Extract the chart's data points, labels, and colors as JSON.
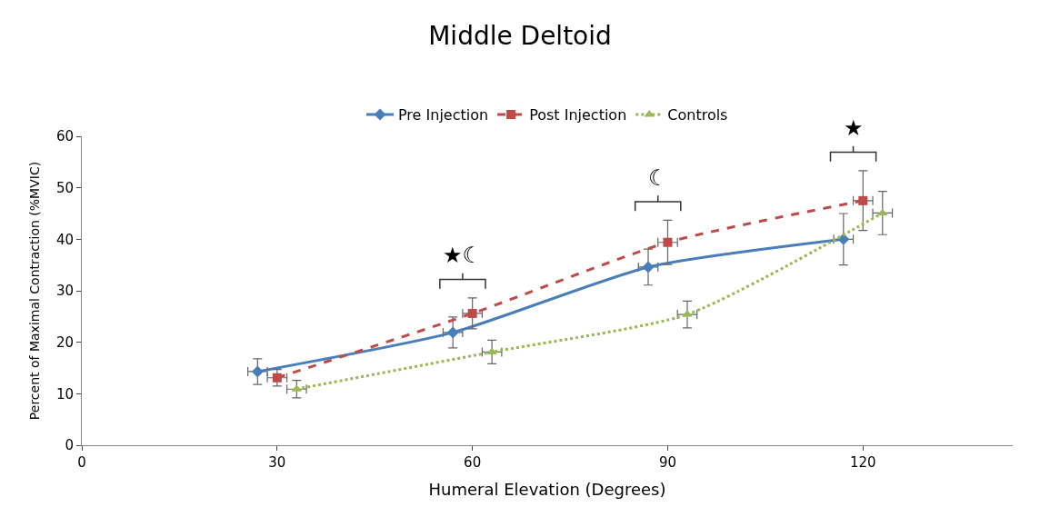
{
  "chart_data": {
    "type": "line",
    "title": "Middle Deltoid",
    "xlabel": "Humeral Elevation (Degrees)",
    "ylabel": "Percent of Maximal Contraction (%MVIC)",
    "xlim": [
      0,
      143
    ],
    "xticks": [
      0,
      30,
      60,
      90,
      120
    ],
    "ylim": [
      0,
      60
    ],
    "yticks": [
      0,
      10,
      20,
      30,
      40,
      50,
      60
    ],
    "legend": "top",
    "series": [
      {
        "name": "Pre Injection",
        "color": "#4a7ebb",
        "marker": "diamond",
        "line_style": "solid",
        "x": [
          27,
          57,
          87,
          117
        ],
        "values": [
          14.3,
          21.9,
          34.6,
          40
        ],
        "errors": [
          2.5,
          3,
          3.5,
          5
        ],
        "xerrors": [
          1.5,
          1.5,
          1.5,
          1.5
        ]
      },
      {
        "name": "Post Injection",
        "color": "#be4b48",
        "marker": "square",
        "line_style": "dashed",
        "x": [
          30,
          60,
          90,
          120
        ],
        "values": [
          13.1,
          25.6,
          39.4,
          47.5
        ],
        "errors": [
          1.6,
          3,
          4.3,
          5.8
        ],
        "xerrors": [
          1.5,
          1.5,
          1.5,
          1.5
        ]
      },
      {
        "name": "Controls",
        "color": "#98b954",
        "marker": "triangle",
        "line_style": "dotted",
        "x": [
          33,
          63,
          93,
          123
        ],
        "values": [
          10.9,
          18.1,
          25.4,
          45.1
        ],
        "errors": [
          1.7,
          2.3,
          2.6,
          4.2
        ],
        "xerrors": [
          1.5,
          1.5,
          1.5,
          1.5
        ]
      }
    ],
    "annotations": [
      "★☾",
      "☾",
      "★"
    ]
  }
}
